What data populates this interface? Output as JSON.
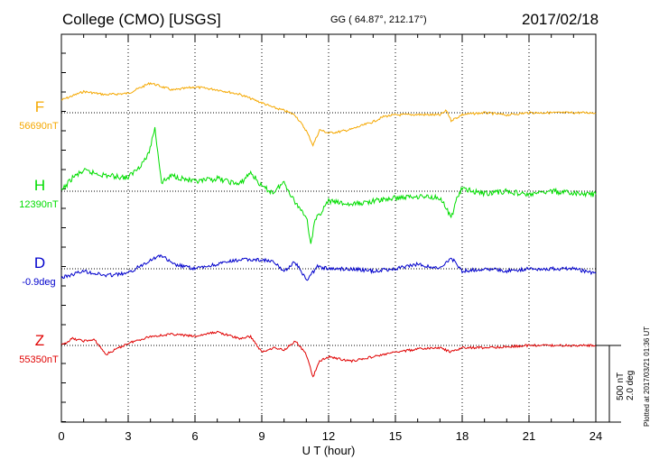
{
  "header": {
    "station": "College (CMO)  [USGS]",
    "coords": "GG ( 64.87°, 212.17°)",
    "date": "2017/02/18"
  },
  "credit": "Plotted at 2017/03/21 01:36 UT",
  "chart_data": {
    "type": "line",
    "xlabel": "U T (hour)",
    "xlim": [
      0,
      24
    ],
    "xticks": [
      "0",
      "3",
      "6",
      "9",
      "12",
      "15",
      "18",
      "21",
      "24"
    ],
    "scale_label_1": "500 nT",
    "scale_label_2": "2.0 deg",
    "series": [
      {
        "name": "F",
        "baseline": "56690nT",
        "color": "#f5a800",
        "x": [
          0,
          1,
          2,
          3,
          4,
          4.5,
          5,
          6,
          7,
          8,
          9,
          9.5,
          10,
          10.5,
          11,
          11.3,
          11.6,
          12,
          12.5,
          13,
          14,
          14.5,
          15,
          16,
          17,
          17.3,
          17.5,
          17.8,
          18,
          19,
          20,
          21,
          22,
          23,
          24
        ],
        "y": [
          -28,
          -47,
          -40,
          -43,
          -66,
          -58,
          -50,
          -57,
          -51,
          -41,
          -22,
          -12,
          -5,
          5,
          40,
          72,
          38,
          45,
          42,
          37,
          20,
          8,
          5,
          4,
          5,
          -5,
          17,
          10,
          4,
          0,
          5,
          0,
          0,
          0,
          0
        ]
      },
      {
        "name": "H",
        "baseline": "12390nT",
        "color": "#00dd00",
        "x": [
          0,
          0.5,
          1,
          2,
          3,
          3.5,
          3.9,
          4.2,
          4.5,
          5,
          6,
          7,
          8,
          8.5,
          9,
          9.5,
          10,
          10.5,
          11,
          11.2,
          11.4,
          12,
          13,
          14,
          15,
          16,
          17,
          17.3,
          17.5,
          17.8,
          18,
          19,
          20,
          21,
          22,
          23,
          24
        ],
        "y": [
          0,
          -30,
          -45,
          -35,
          -30,
          -55,
          -80,
          -140,
          -20,
          -35,
          -20,
          -28,
          -15,
          -42,
          -10,
          3,
          -20,
          25,
          55,
          115,
          65,
          22,
          30,
          22,
          15,
          11,
          14,
          40,
          60,
          10,
          -5,
          5,
          0,
          8,
          0,
          5,
          7
        ]
      },
      {
        "name": "D",
        "baseline": "-0.9deg",
        "color": "#0000cc",
        "x": [
          0,
          1,
          2,
          3,
          4,
          4.5,
          5,
          6,
          7,
          8,
          9,
          9.5,
          10,
          10.5,
          11,
          11.5,
          12,
          13,
          14,
          15,
          16,
          17,
          17.5,
          18,
          19,
          20,
          21,
          22,
          23,
          24
        ],
        "y": [
          20,
          5,
          15,
          10,
          -20,
          -30,
          -10,
          0,
          -10,
          -20,
          -20,
          -15,
          5,
          -15,
          25,
          -5,
          0,
          0,
          5,
          0,
          -10,
          0,
          -25,
          5,
          0,
          5,
          0,
          0,
          0,
          10
        ]
      },
      {
        "name": "Z",
        "baseline": "55350nT",
        "color": "#e00000",
        "x": [
          0,
          0.5,
          1,
          1.5,
          2,
          3,
          4,
          5,
          6,
          7,
          8,
          8.5,
          9,
          9.5,
          10,
          10.5,
          11,
          11.3,
          11.6,
          12,
          12.5,
          13,
          14,
          15,
          16,
          17,
          17.5,
          18,
          19,
          20,
          21,
          22,
          23,
          24
        ],
        "y": [
          0,
          -15,
          -10,
          -12,
          20,
          -5,
          -20,
          -25,
          -20,
          -30,
          -15,
          -20,
          15,
          5,
          10,
          -10,
          20,
          70,
          35,
          25,
          30,
          35,
          25,
          15,
          8,
          5,
          15,
          5,
          5,
          3,
          0,
          0,
          0,
          0
        ]
      }
    ]
  }
}
